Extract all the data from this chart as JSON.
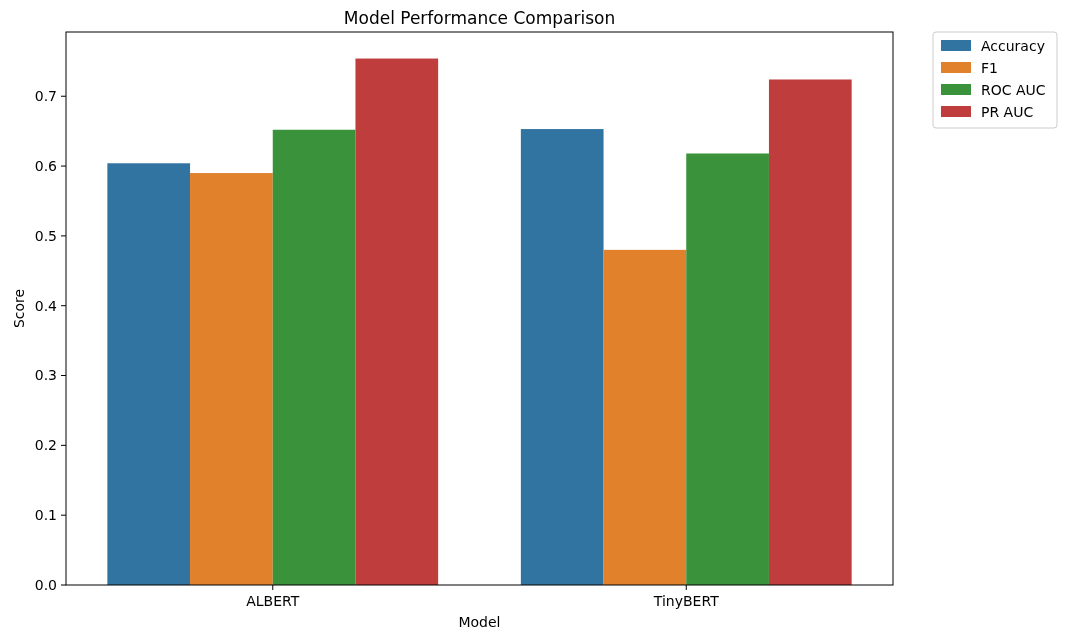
{
  "chart_data": {
    "type": "bar",
    "title": "Model Performance Comparison",
    "xlabel": "Model",
    "ylabel": "Score",
    "categories": [
      "ALBERT",
      "TinyBERT"
    ],
    "series": [
      {
        "name": "Accuracy",
        "color": "#3274a1",
        "values": [
          0.604,
          0.653
        ]
      },
      {
        "name": "F1",
        "color": "#e1812c",
        "values": [
          0.59,
          0.48
        ]
      },
      {
        "name": "ROC AUC",
        "color": "#3a923a",
        "values": [
          0.652,
          0.618
        ]
      },
      {
        "name": "PR AUC",
        "color": "#c03d3e",
        "values": [
          0.754,
          0.724
        ]
      }
    ],
    "ylim": [
      0,
      0.792
    ],
    "yticks": [
      {
        "value": 0,
        "label": "0.0"
      },
      {
        "value": 0.1,
        "label": "0.1"
      },
      {
        "value": 0.2,
        "label": "0.2"
      },
      {
        "value": 0.3,
        "label": "0.3"
      },
      {
        "value": 0.4,
        "label": "0.4"
      },
      {
        "value": 0.5,
        "label": "0.5"
      },
      {
        "value": 0.6,
        "label": "0.6"
      },
      {
        "value": 0.7,
        "label": "0.7"
      }
    ],
    "legend": "top right"
  }
}
